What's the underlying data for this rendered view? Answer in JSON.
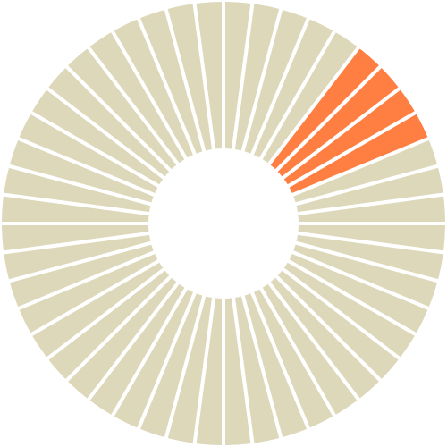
{
  "chart_data": {
    "type": "pie",
    "variant": "donut",
    "segment_count": 48,
    "equal_segments": true,
    "highlighted_segments": [
      5,
      6,
      7,
      8
    ],
    "start_angle_deg": 0,
    "direction": "clockwise",
    "colors": {
      "base": "#DDD8BA",
      "highlight": "#FF7F42",
      "separator": "#FFFFFF"
    },
    "legend": "none",
    "title": ""
  }
}
